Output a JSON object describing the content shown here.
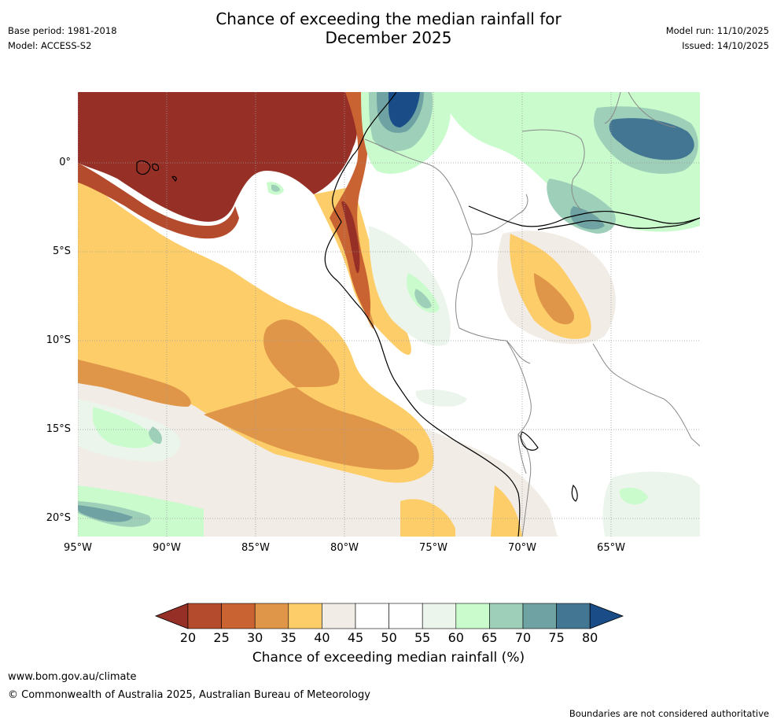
{
  "header": {
    "title_line1": "Chance of exceeding the median rainfall for",
    "title_line2": "December 2025",
    "base_period": "Base period: 1981-2018",
    "model": "Model: ACCESS-S2",
    "model_run": "Model run: 11/10/2025",
    "issued": "Issued: 14/10/2025"
  },
  "map": {
    "lat_labels": [
      "0°",
      "5°S",
      "10°S",
      "15°S",
      "20°S"
    ],
    "lon_labels": [
      "95°W",
      "90°W",
      "85°W",
      "80°W",
      "75°W",
      "70°W",
      "65°W"
    ],
    "colors": {
      "c20": "#963026",
      "c25": "#b44b2c",
      "c30": "#c96332",
      "c35": "#e09649",
      "c40": "#fdcd6a",
      "c45": "#f1ece6",
      "c50": "#ffffff",
      "c55": "#ffffff",
      "c60": "#ebf5eb",
      "c65": "#c9fbcd",
      "c70": "#9ecfb8",
      "c75": "#6ea2a3",
      "c80": "#427693",
      "c85": "#1a4d88"
    }
  },
  "colorbar": {
    "ticks": [
      "20",
      "25",
      "30",
      "35",
      "40",
      "45",
      "50",
      "55",
      "60",
      "65",
      "70",
      "75",
      "80"
    ],
    "label": "Chance of exceeding median rainfall (%)"
  },
  "footer": {
    "url": "www.bom.gov.au/climate",
    "copyright": "© Commonwealth of Australia 2025, Australian Bureau of Meteorology",
    "disclaimer": "Boundaries are not considered authoritative"
  }
}
